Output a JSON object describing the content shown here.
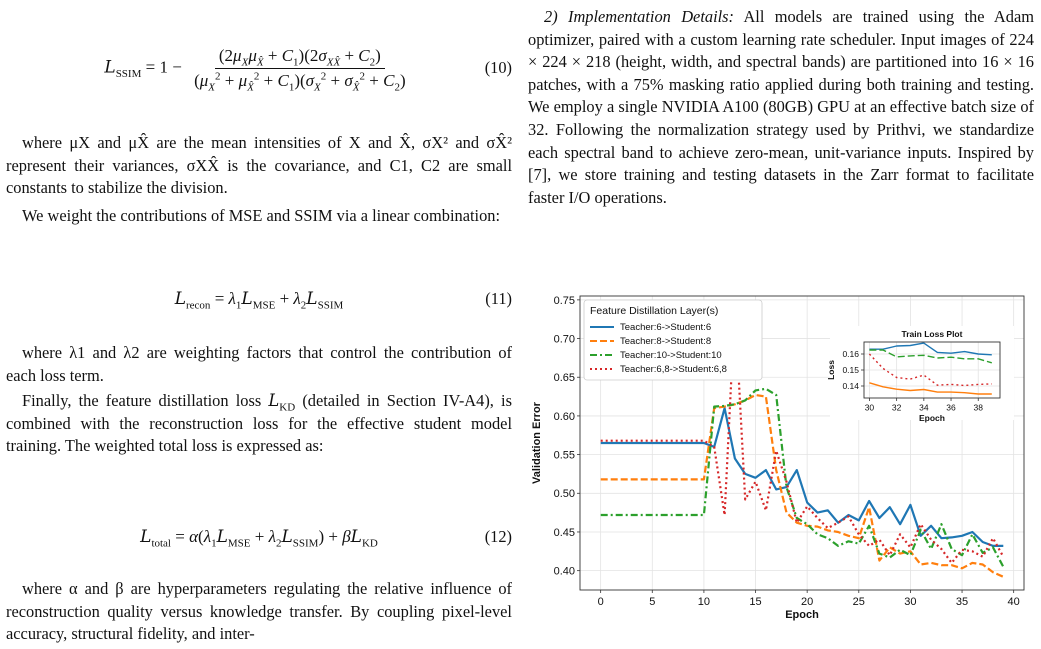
{
  "left": {
    "eq10": {
      "number": "(10)"
    },
    "para_ssim_def": "where μX and μX̂ are the mean intensities of X and X̂, σX² and σX̂² represent their variances, σXX̂ is the covariance, and C1, C2 are small constants to stabilize the division.",
    "para_weight": "We weight the contributions of MSE and SSIM via a linear combination:",
    "eq11": {
      "number": "(11)"
    },
    "para_lambda": "where λ1 and λ2 are weighting factors that control the contribution of each loss term.",
    "para_kd_1": "Finally, the feature distillation loss",
    "para_kd_2": "(detailed in Section IV-A4), is combined with the reconstruction loss for the effective student model training. The weighted total loss is expressed as:",
    "eq12": {
      "number": "(12)"
    },
    "para_alpha": "where α and β are hyperparameters regulating the relative influence of reconstruction quality versus knowledge transfer. By coupling pixel-level accuracy, structural fidelity, and inter-"
  },
  "right": {
    "section_heading": "2) Implementation Details:",
    "para_impl": "All models are trained using the Adam optimizer, paired with a custom learning rate scheduler. Input images of 224 × 224 × 218 (height, width, and spectral bands) are partitioned into 16 × 16 patches, with a 75% masking ratio applied during both training and testing. We employ a single NVIDIA A100 (80GB) GPU at an effective batch size of 32. Following the normalization strategy used by Prithvi, we standardize each spectral band to achieve zero-mean, unit-variance inputs. Inspired by  [7], we store training and testing datasets in the Zarr format to facilitate faster I/O operations."
  },
  "chart_data": [
    {
      "type": "line",
      "title": "",
      "xlabel": "Epoch",
      "ylabel": "Validation Error",
      "xlim": [
        -2,
        41
      ],
      "ylim": [
        0.375,
        0.755
      ],
      "xticks": [
        0,
        5,
        10,
        15,
        20,
        25,
        30,
        35,
        40
      ],
      "yticks": [
        0.4,
        0.45,
        0.5,
        0.55,
        0.6,
        0.65,
        0.7,
        0.75
      ],
      "grid": true,
      "legend_title": "Feature Distillation Layer(s)",
      "legend_position": "top-left",
      "x": [
        0,
        1,
        2,
        3,
        4,
        5,
        6,
        7,
        8,
        9,
        10,
        11,
        12,
        13,
        14,
        15,
        16,
        17,
        18,
        19,
        20,
        21,
        22,
        23,
        24,
        25,
        26,
        27,
        28,
        29,
        30,
        31,
        32,
        33,
        34,
        35,
        36,
        37,
        38,
        39
      ],
      "series": [
        {
          "name": "Teacher:6->Student:6",
          "color": "#1f77b4",
          "dash": "solid",
          "values": [
            0.565,
            0.565,
            0.565,
            0.565,
            0.565,
            0.565,
            0.565,
            0.565,
            0.565,
            0.565,
            0.565,
            0.56,
            0.61,
            0.545,
            0.525,
            0.52,
            0.53,
            0.505,
            0.508,
            0.53,
            0.488,
            0.475,
            0.478,
            0.462,
            0.472,
            0.465,
            0.49,
            0.468,
            0.482,
            0.46,
            0.485,
            0.445,
            0.458,
            0.442,
            0.443,
            0.445,
            0.45,
            0.437,
            0.432,
            0.432
          ]
        },
        {
          "name": "Teacher:8->Student:8",
          "color": "#ff7f0e",
          "dash": "dashed",
          "values": [
            0.518,
            0.518,
            0.518,
            0.518,
            0.518,
            0.518,
            0.518,
            0.518,
            0.518,
            0.518,
            0.518,
            0.61,
            0.612,
            0.615,
            0.62,
            0.627,
            0.625,
            0.53,
            0.475,
            0.462,
            0.458,
            0.457,
            0.452,
            0.45,
            0.445,
            0.442,
            0.482,
            0.413,
            0.43,
            0.422,
            0.425,
            0.408,
            0.41,
            0.407,
            0.407,
            0.403,
            0.41,
            0.408,
            0.398,
            0.392
          ]
        },
        {
          "name": "Teacher:10->Student:10",
          "color": "#2ca02c",
          "dash": "dashdot",
          "values": [
            0.472,
            0.472,
            0.472,
            0.472,
            0.472,
            0.472,
            0.472,
            0.472,
            0.472,
            0.472,
            0.472,
            0.612,
            0.613,
            0.615,
            0.62,
            0.633,
            0.635,
            0.627,
            0.508,
            0.468,
            0.46,
            0.447,
            0.442,
            0.432,
            0.438,
            0.435,
            0.458,
            0.422,
            0.417,
            0.427,
            0.42,
            0.453,
            0.428,
            0.46,
            0.428,
            0.42,
            0.447,
            0.423,
            0.43,
            0.405
          ]
        },
        {
          "name": "Teacher:6,8->Student:6,8",
          "color": "#d62728",
          "dash": "dotted",
          "values": [
            0.568,
            0.568,
            0.568,
            0.568,
            0.568,
            0.568,
            0.568,
            0.568,
            0.568,
            0.568,
            0.568,
            0.56,
            0.472,
            0.742,
            0.492,
            0.515,
            0.478,
            0.555,
            0.515,
            0.462,
            0.483,
            0.468,
            0.455,
            0.462,
            0.47,
            0.447,
            0.432,
            0.44,
            0.42,
            0.447,
            0.43,
            0.46,
            0.44,
            0.428,
            0.41,
            0.427,
            0.425,
            0.418,
            0.442,
            0.418
          ]
        }
      ]
    },
    {
      "type": "line",
      "title": "Train Loss Plot",
      "xlabel": "Epoch",
      "ylabel": "Loss",
      "xlim": [
        29.6,
        39.6
      ],
      "ylim": [
        0.1325,
        0.1675
      ],
      "xticks": [
        30,
        32,
        34,
        36,
        38
      ],
      "yticks": [
        0.14,
        0.15,
        0.16
      ],
      "grid": true,
      "x": [
        30,
        31,
        32,
        33,
        34,
        35,
        36,
        37,
        38,
        39
      ],
      "series": [
        {
          "color": "#1f77b4",
          "dash": "solid",
          "values": [
            0.163,
            0.163,
            0.165,
            0.1653,
            0.1668,
            0.161,
            0.1605,
            0.1615,
            0.16,
            0.1595
          ]
        },
        {
          "color": "#ff7f0e",
          "dash": "solid",
          "values": [
            0.142,
            0.1395,
            0.138,
            0.1372,
            0.1378,
            0.1362,
            0.1362,
            0.1358,
            0.135,
            0.135
          ]
        },
        {
          "color": "#2ca02c",
          "dash": "dashed",
          "values": [
            0.1625,
            0.1625,
            0.1582,
            0.1588,
            0.1592,
            0.1575,
            0.158,
            0.157,
            0.157,
            0.1545
          ]
        },
        {
          "color": "#d62728",
          "dash": "dotted",
          "values": [
            0.16,
            0.151,
            0.1453,
            0.1443,
            0.1468,
            0.1405,
            0.141,
            0.1403,
            0.141,
            0.1413
          ]
        }
      ]
    }
  ]
}
